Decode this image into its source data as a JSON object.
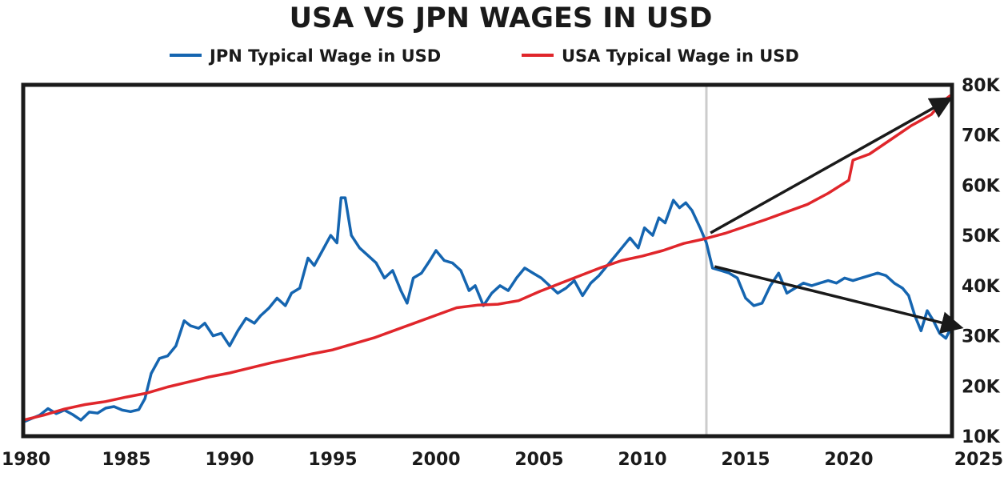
{
  "chart_data": {
    "type": "line",
    "title": "USA VS JPN WAGES IN USD",
    "legend_position": "top",
    "grid": false,
    "xlim": [
      1980,
      2025
    ],
    "ylim": [
      10000,
      80000
    ],
    "x_ticks": [
      1980,
      1985,
      1990,
      1995,
      2000,
      2005,
      2010,
      2015,
      2020,
      2025
    ],
    "x_tick_labels": [
      "1980",
      "1985",
      "1990",
      "1995",
      "2000",
      "2005",
      "2010",
      "2015",
      "2020",
      "2025"
    ],
    "y_ticks": [
      10000,
      20000,
      30000,
      40000,
      50000,
      60000,
      70000,
      80000
    ],
    "y_tick_labels": [
      "10K",
      "20K",
      "30K",
      "40K",
      "50K",
      "60K",
      "70K",
      "80K"
    ],
    "y_axis_side": "right",
    "vertical_reference_line": {
      "x": 2013.1,
      "color": "#cccccc"
    },
    "series": [
      {
        "name": "JPN Typical Wage in USD",
        "color": "#1565b0",
        "x": [
          1980.0,
          1980.4,
          1980.8,
          1981.2,
          1981.6,
          1982.0,
          1982.4,
          1982.8,
          1983.2,
          1983.6,
          1984.0,
          1984.4,
          1984.8,
          1985.2,
          1985.6,
          1985.9,
          1986.2,
          1986.6,
          1987.0,
          1987.4,
          1987.8,
          1988.1,
          1988.5,
          1988.8,
          1989.2,
          1989.6,
          1990.0,
          1990.4,
          1990.8,
          1991.2,
          1991.5,
          1991.9,
          1992.3,
          1992.7,
          1993.0,
          1993.4,
          1993.8,
          1994.1,
          1994.5,
          1994.9,
          1995.2,
          1995.4,
          1995.6,
          1995.9,
          1996.3,
          1996.7,
          1997.1,
          1997.5,
          1997.9,
          1998.3,
          1998.6,
          1998.9,
          1999.3,
          1999.7,
          2000.0,
          2000.4,
          2000.8,
          2001.2,
          2001.6,
          2001.9,
          2002.3,
          2002.7,
          2003.1,
          2003.5,
          2003.9,
          2004.3,
          2004.7,
          2005.1,
          2005.5,
          2005.9,
          2006.3,
          2006.7,
          2007.1,
          2007.5,
          2007.9,
          2008.3,
          2008.7,
          2009.0,
          2009.4,
          2009.8,
          2010.1,
          2010.5,
          2010.8,
          2011.1,
          2011.5,
          2011.8,
          2012.1,
          2012.4,
          2012.8,
          2013.1,
          2013.4,
          2013.8,
          2014.2,
          2014.6,
          2015.0,
          2015.4,
          2015.8,
          2016.2,
          2016.6,
          2017.0,
          2017.4,
          2017.8,
          2018.2,
          2018.6,
          2019.0,
          2019.4,
          2019.8,
          2020.2,
          2020.6,
          2021.0,
          2021.4,
          2021.8,
          2022.2,
          2022.6,
          2022.9,
          2023.2,
          2023.5,
          2023.8,
          2024.1,
          2024.4,
          2024.7,
          2025.0
        ],
        "values": [
          12800,
          13500,
          14200,
          15500,
          14500,
          15200,
          14300,
          13200,
          14800,
          14600,
          15600,
          15900,
          15200,
          14900,
          15300,
          17500,
          22500,
          25500,
          26000,
          28000,
          33000,
          32000,
          31500,
          32500,
          30000,
          30500,
          28000,
          31000,
          33500,
          32500,
          34000,
          35500,
          37500,
          36000,
          38500,
          39500,
          45500,
          44000,
          47000,
          50000,
          48500,
          57500,
          57500,
          50000,
          47500,
          46000,
          44500,
          41500,
          43000,
          39000,
          36500,
          41500,
          42500,
          45000,
          47000,
          45000,
          44500,
          43000,
          39000,
          40000,
          36000,
          38500,
          40000,
          39000,
          41500,
          43500,
          42500,
          41500,
          40000,
          38500,
          39500,
          41000,
          38000,
          40500,
          42000,
          44000,
          46000,
          47500,
          49500,
          47500,
          51500,
          50000,
          53500,
          52500,
          57000,
          55500,
          56500,
          55000,
          51500,
          48500,
          43500,
          43000,
          42500,
          41500,
          37500,
          36000,
          36500,
          40000,
          42500,
          38500,
          39500,
          40500,
          40000,
          40500,
          41000,
          40500,
          41500,
          41000,
          41500,
          42000,
          42500,
          42000,
          40500,
          39500,
          38000,
          34000,
          31000,
          35000,
          33000,
          30500,
          29500,
          32000
        ]
      },
      {
        "name": "USA Typical Wage in USD",
        "color": "#e0262b",
        "x": [
          1980.0,
          1981.0,
          1982.0,
          1983.0,
          1984.0,
          1985.0,
          1986.0,
          1987.0,
          1988.0,
          1989.0,
          1990.0,
          1991.0,
          1992.0,
          1993.0,
          1994.0,
          1995.0,
          1996.0,
          1997.0,
          1998.0,
          1999.0,
          2000.0,
          2001.0,
          2002.0,
          2003.0,
          2004.0,
          2005.0,
          2006.0,
          2007.0,
          2008.0,
          2009.0,
          2010.0,
          2011.0,
          2012.0,
          2013.0,
          2014.0,
          2015.0,
          2016.0,
          2017.0,
          2018.0,
          2019.0,
          2020.0,
          2020.2,
          2021.0,
          2022.0,
          2023.0,
          2024.0,
          2024.5,
          2024.9
        ],
        "values": [
          13200,
          14200,
          15400,
          16300,
          16900,
          17800,
          18600,
          19800,
          20800,
          21800,
          22600,
          23600,
          24600,
          25500,
          26400,
          27200,
          28400,
          29600,
          31100,
          32600,
          34100,
          35600,
          36100,
          36300,
          37000,
          38800,
          40400,
          42000,
          43600,
          45000,
          45900,
          47000,
          48400,
          49300,
          50400,
          51800,
          53200,
          54700,
          56200,
          58400,
          61000,
          65000,
          66200,
          69000,
          71800,
          74100,
          76500,
          77800
        ]
      }
    ],
    "annotations": [
      {
        "type": "arrow",
        "from": {
          "x": 2013.3,
          "y": 50500
        },
        "to": {
          "x": 2024.8,
          "y": 77000
        },
        "color": "#1a1a1a"
      },
      {
        "type": "arrow",
        "from": {
          "x": 2013.5,
          "y": 43800
        },
        "to": {
          "x": 2025.3,
          "y": 31800
        },
        "color": "#1a1a1a"
      }
    ]
  }
}
